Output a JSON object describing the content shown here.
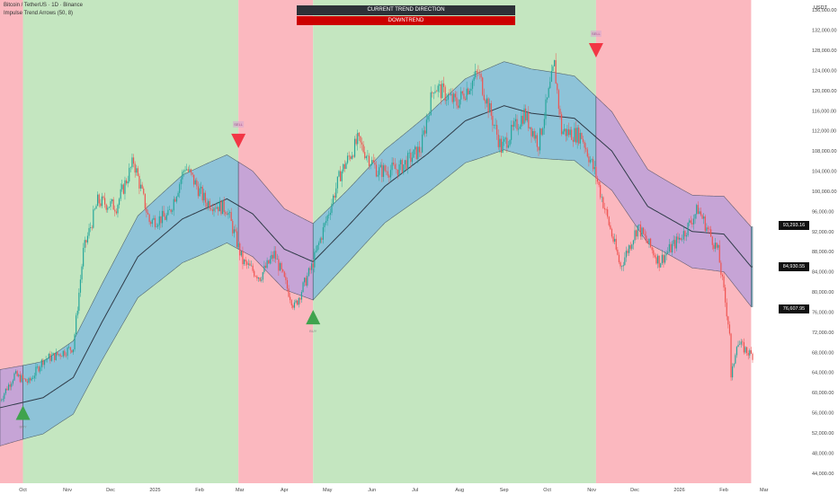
{
  "header": {
    "symbol": "Bitcoin / TetherUS · 1D · Binance",
    "indicator": "Impulse Trend Arrows (50, 8)"
  },
  "status_panel": {
    "title": "CURRENT TREND DIRECTION",
    "value": "DOWNTREND"
  },
  "axis": {
    "currency": "USDT"
  },
  "price_tags": [
    {
      "value": "93,293.16",
      "price": 93293.16
    },
    {
      "value": "84,930.55",
      "price": 84930.55
    },
    {
      "value": "76,607.95",
      "price": 76607.95
    }
  ],
  "colors": {
    "uptrend_bg": "#c4e6c0",
    "downtrend_bg": "#fbb8bf",
    "band_up": "#8ec3d8",
    "band_down": "#c6a4d6",
    "midline": "#2f3b48",
    "candle_up": "#26a69a",
    "candle_down": "#ef5350",
    "buy_arrow": "#3fa34d",
    "sell_arrow": "#f23645"
  },
  "chart_data": {
    "type": "candlestick",
    "symbol": "Bitcoin / TetherUS",
    "timeframe": "1D",
    "exchange": "Binance",
    "x_tick_labels": [
      "Oct",
      "Nov",
      "Dec",
      "2025",
      "Feb",
      "Mar",
      "Apr",
      "May",
      "Jun",
      "Jul",
      "Aug",
      "Sep",
      "Oct",
      "Nov",
      "Dec",
      "2026",
      "Feb",
      "Mar"
    ],
    "y_tick_labels": [
      "136,000.00",
      "132,000.00",
      "128,000.00",
      "124,000.00",
      "120,000.00",
      "116,000.00",
      "112,000.00",
      "108,000.00",
      "104,000.00",
      "100,000.00",
      "96,000.00",
      "92,000.00",
      "88,000.00",
      "84,000.00",
      "80,000.00",
      "76,000.00",
      "72,000.00",
      "68,000.00",
      "64,000.00",
      "60,000.00",
      "56,000.00",
      "52,000.00",
      "48,000.00",
      "44,000.00"
    ],
    "ylim": [
      42000,
      138000
    ],
    "trend_regions": [
      {
        "start": "2024-09-15",
        "end": "2024-10-01",
        "trend": "down"
      },
      {
        "start": "2024-10-01",
        "end": "2025-02-28",
        "trend": "up"
      },
      {
        "start": "2025-02-28",
        "end": "2025-04-21",
        "trend": "down"
      },
      {
        "start": "2025-04-21",
        "end": "2025-11-04",
        "trend": "up"
      },
      {
        "start": "2025-11-04",
        "end": "2026-02-20",
        "trend": "down"
      }
    ],
    "signals": [
      {
        "date": "2024-10-01",
        "type": "BUY",
        "price": 56000
      },
      {
        "date": "2025-02-28",
        "type": "SELL",
        "price": 110000
      },
      {
        "date": "2025-04-21",
        "type": "BUY",
        "price": 75000
      },
      {
        "date": "2025-11-04",
        "type": "SELL",
        "price": 128000
      }
    ],
    "close_path": [
      [
        "2024-09-15",
        58500
      ],
      [
        "2024-09-25",
        63500
      ],
      [
        "2024-10-05",
        62000
      ],
      [
        "2024-10-15",
        66500
      ],
      [
        "2024-10-25",
        67500
      ],
      [
        "2024-11-05",
        69000
      ],
      [
        "2024-11-12",
        88000
      ],
      [
        "2024-11-22",
        98000
      ],
      [
        "2024-12-05",
        97000
      ],
      [
        "2024-12-17",
        106000
      ],
      [
        "2024-12-28",
        94000
      ],
      [
        "2025-01-10",
        95000
      ],
      [
        "2025-01-22",
        105000
      ],
      [
        "2025-02-05",
        98000
      ],
      [
        "2025-02-20",
        96500
      ],
      [
        "2025-03-03",
        86000
      ],
      [
        "2025-03-15",
        83000
      ],
      [
        "2025-03-25",
        87500
      ],
      [
        "2025-04-08",
        77000
      ],
      [
        "2025-04-20",
        85000
      ],
      [
        "2025-05-01",
        95000
      ],
      [
        "2025-05-10",
        103500
      ],
      [
        "2025-05-22",
        110000
      ],
      [
        "2025-06-05",
        104000
      ],
      [
        "2025-06-20",
        104500
      ],
      [
        "2025-07-05",
        108500
      ],
      [
        "2025-07-14",
        121000
      ],
      [
        "2025-07-30",
        117500
      ],
      [
        "2025-08-14",
        123500
      ],
      [
        "2025-08-30",
        108500
      ],
      [
        "2025-09-15",
        115500
      ],
      [
        "2025-09-25",
        109500
      ],
      [
        "2025-10-06",
        125000
      ],
      [
        "2025-10-11",
        112000
      ],
      [
        "2025-10-25",
        111000
      ],
      [
        "2025-11-04",
        103000
      ],
      [
        "2025-11-21",
        85000
      ],
      [
        "2025-12-03",
        93000
      ],
      [
        "2025-12-18",
        86000
      ],
      [
        "2026-01-05",
        92000
      ],
      [
        "2026-01-14",
        96500
      ],
      [
        "2026-01-28",
        88000
      ],
      [
        "2026-02-05",
        72000
      ],
      [
        "2026-02-06",
        62500
      ],
      [
        "2026-02-10",
        70000
      ],
      [
        "2026-02-20",
        67500
      ]
    ],
    "trend_midline": [
      [
        "2024-09-15",
        57000
      ],
      [
        "2024-10-15",
        59000
      ],
      [
        "2024-11-05",
        63000
      ],
      [
        "2024-11-25",
        74000
      ],
      [
        "2024-12-20",
        87000
      ],
      [
        "2025-01-20",
        94500
      ],
      [
        "2025-02-20",
        98500
      ],
      [
        "2025-03-10",
        95500
      ],
      [
        "2025-04-01",
        88500
      ],
      [
        "2025-04-21",
        86000
      ],
      [
        "2025-05-15",
        93000
      ],
      [
        "2025-06-10",
        101000
      ],
      [
        "2025-07-10",
        107500
      ],
      [
        "2025-08-05",
        114000
      ],
      [
        "2025-09-01",
        117000
      ],
      [
        "2025-09-20",
        115500
      ],
      [
        "2025-10-20",
        114500
      ],
      [
        "2025-11-15",
        108000
      ],
      [
        "2025-12-10",
        97000
      ],
      [
        "2026-01-10",
        92000
      ],
      [
        "2026-02-01",
        91500
      ],
      [
        "2026-02-20",
        85000
      ]
    ],
    "band_half_width": 8000
  }
}
